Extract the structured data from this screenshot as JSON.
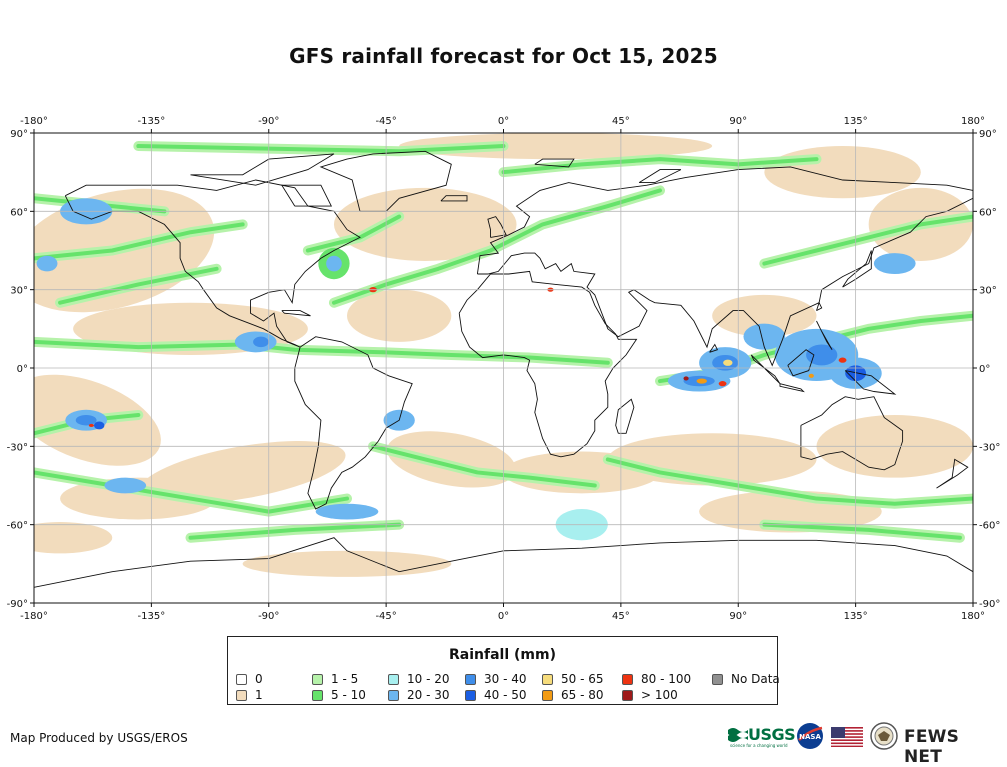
{
  "title": "GFS rainfall forecast for Oct 15, 2025",
  "map": {
    "lon_ticks": [
      "-180°",
      "-135°",
      "-90°",
      "-45°",
      "0°",
      "45°",
      "90°",
      "135°",
      "180°"
    ],
    "lat_ticks": [
      "90°",
      "60°",
      "30°",
      "0°",
      "-30°",
      "-60°",
      "-90°"
    ],
    "projection": "equirectangular",
    "extent": {
      "lon": [
        -180,
        180
      ],
      "lat": [
        -90,
        90
      ]
    },
    "graticule_spacing_deg": {
      "lon": 45,
      "lat": 30
    },
    "colors": {
      "ocean_background": "#ffffff",
      "coastline": "#111111",
      "graticule": "#b8b8b8"
    }
  },
  "legend": {
    "title": "Rainfall (mm)",
    "items": [
      {
        "label": "0",
        "color": "#ffffff"
      },
      {
        "label": "1",
        "color": "#f2dcbd"
      },
      {
        "label": "1 - 5",
        "color": "#b6f2aa"
      },
      {
        "label": "5 - 10",
        "color": "#66e36b"
      },
      {
        "label": "10 - 20",
        "color": "#a8efef"
      },
      {
        "label": "20 - 30",
        "color": "#6cb6f0"
      },
      {
        "label": "30 - 40",
        "color": "#3f8eea"
      },
      {
        "label": "40 - 50",
        "color": "#1b5ee3"
      },
      {
        "label": "50 - 65",
        "color": "#f6dc7c"
      },
      {
        "label": "65 - 80",
        "color": "#f29b14"
      },
      {
        "label": "80 - 100",
        "color": "#ee3311"
      },
      {
        "label": "> 100",
        "color": "#9e1a1a"
      },
      {
        "label": "No Data",
        "color": "#909090"
      }
    ]
  },
  "credit": "Map Produced by USGS/EROS",
  "logos": {
    "usgs": "USGS",
    "usgs_tagline": "science for a changing world",
    "nasa": "NASA",
    "fews": "FEWS NET"
  }
}
